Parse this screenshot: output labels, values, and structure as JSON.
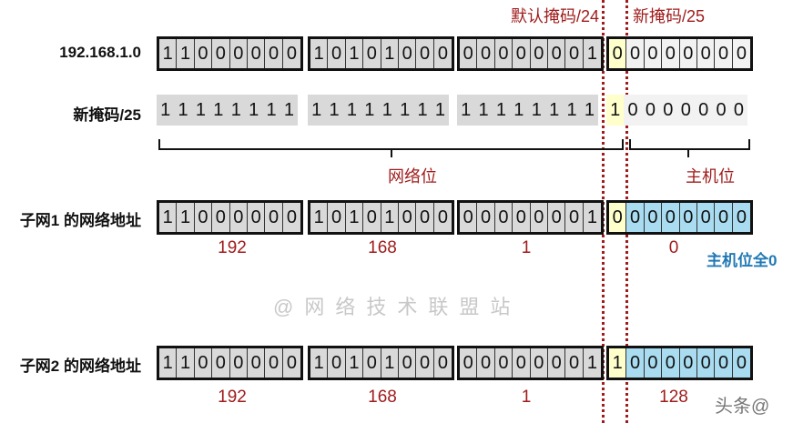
{
  "header": {
    "default_mask_label": "默认掩码/24",
    "new_mask_label": "新掩码/25"
  },
  "rows": [
    {
      "label": "192.168.1.0",
      "octets": [
        "11000000",
        "10101000",
        "00000001",
        "00000000"
      ],
      "boxed": true,
      "style": "address"
    },
    {
      "label": "新掩码/25",
      "octets": [
        "11111111",
        "11111111",
        "11111111",
        "10000000"
      ],
      "boxed": false,
      "style": "mask"
    },
    {
      "label": "子网1 的网络地址",
      "octets": [
        "11000000",
        "10101000",
        "00000001",
        "00000000"
      ],
      "boxed": true,
      "style": "subnet",
      "decimals": [
        "192",
        "168",
        "1",
        "0"
      ]
    },
    {
      "label": "子网2 的网络地址",
      "octets": [
        "11000000",
        "10101000",
        "00000001",
        "10000000"
      ],
      "boxed": true,
      "style": "subnet",
      "decimals": [
        "192",
        "168",
        "1",
        "128"
      ]
    }
  ],
  "brace_labels": {
    "network": "网络位",
    "host": "主机位"
  },
  "notes": {
    "host_all_zero": "主机位全0"
  },
  "watermark": "@网络技术联盟站",
  "corner_watermark": "头条@",
  "colors": {
    "accent_red": "#a01c1c",
    "note_blue": "#1f78b4",
    "host_blue": "#a9dcf0",
    "subnet_bit_yellow": "#ffffcc",
    "bit_gray": "#d9d9d9"
  }
}
